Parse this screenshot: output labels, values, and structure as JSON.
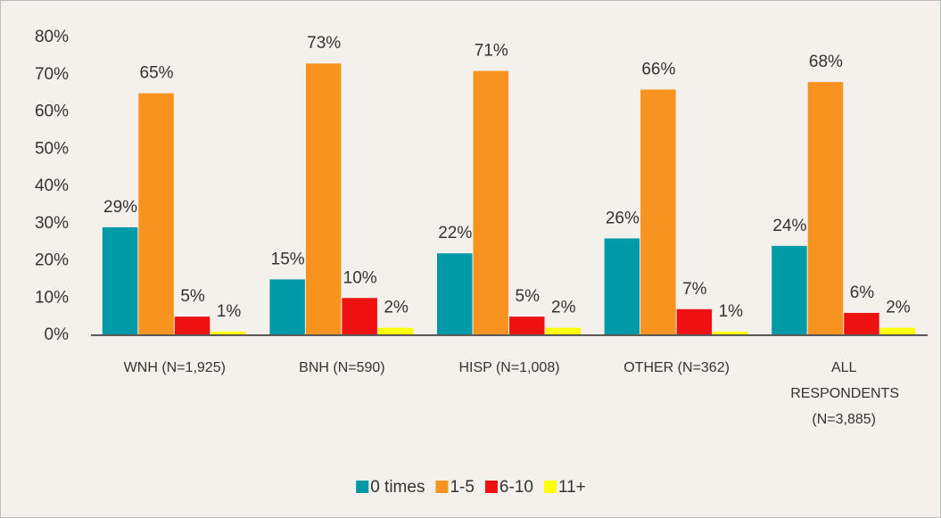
{
  "chart_data": {
    "type": "bar",
    "categories": [
      "WNH (N=1,925)",
      "BNH (N=590)",
      "HISP (N=1,008)",
      "OTHER (N=362)",
      "ALL RESPONDENTS (N=3,885)"
    ],
    "series": [
      {
        "name": "0 times",
        "color": "#0099a8",
        "values": [
          29,
          15,
          22,
          26,
          24
        ],
        "value_labels": [
          "29%",
          "15%",
          "22%",
          "26%",
          "24%"
        ]
      },
      {
        "name": "1-5",
        "color": "#f7931e",
        "values": [
          65,
          73,
          71,
          66,
          68
        ],
        "value_labels": [
          "65%",
          "73%",
          "71%",
          "66%",
          "68%"
        ]
      },
      {
        "name": "6-10",
        "color": "#ee1111",
        "values": [
          5,
          10,
          5,
          7,
          6
        ],
        "value_labels": [
          "5%",
          "10%",
          "5%",
          "7%",
          "6%"
        ]
      },
      {
        "name": "11+",
        "color": "#ffff00",
        "values": [
          1,
          2,
          2,
          1,
          2
        ],
        "value_labels": [
          "1%",
          "2%",
          "2%",
          "1%",
          "2%"
        ]
      }
    ],
    "ylim": [
      0,
      80
    ],
    "yticks": [
      {
        "value": 0,
        "label": "0%"
      },
      {
        "value": 10,
        "label": "10%"
      },
      {
        "value": 20,
        "label": "20%"
      },
      {
        "value": 30,
        "label": "30%"
      },
      {
        "value": 40,
        "label": "40%"
      },
      {
        "value": 50,
        "label": "50%"
      },
      {
        "value": 60,
        "label": "60%"
      },
      {
        "value": 70,
        "label": "70%"
      },
      {
        "value": 80,
        "label": "80%"
      }
    ],
    "legend": "bottom"
  }
}
